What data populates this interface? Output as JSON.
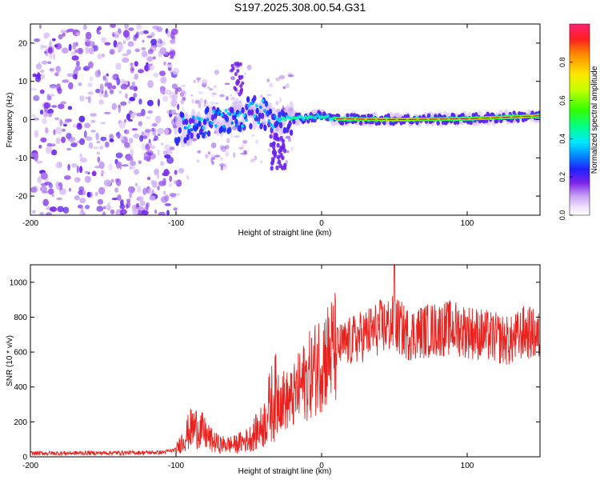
{
  "title": "S197.2025.308.00.54.G31",
  "chart_data": [
    {
      "type": "heatmap",
      "title": "S197.2025.308.00.54.G31",
      "xlabel": "Height of straight line (km)",
      "ylabel": "Frequency (Hz)",
      "xlim": [
        -200,
        150
      ],
      "ylim": [
        -25,
        25
      ],
      "xticks": [
        -200,
        -100,
        0,
        100
      ],
      "yticks": [
        -20,
        -10,
        0,
        10,
        20
      ],
      "colorbar": {
        "label": "Normalized spectral amplitude",
        "ticks": [
          "0.0",
          "0.2",
          "0.4",
          "0.6",
          "0.8"
        ],
        "range": [
          0,
          1
        ]
      },
      "ridge": {
        "description_points": [
          {
            "x": -100,
            "y": -3
          },
          {
            "x": -80,
            "y": -1
          },
          {
            "x": -60,
            "y": 1
          },
          {
            "x": -40,
            "y": 2
          },
          {
            "x": -30,
            "y": 0
          },
          {
            "x": -20,
            "y": 0.5
          },
          {
            "x": -10,
            "y": 0.5
          },
          {
            "x": 0,
            "y": 1
          },
          {
            "x": 10,
            "y": 0.2
          },
          {
            "x": 50,
            "y": 0
          },
          {
            "x": 100,
            "y": 0.2
          },
          {
            "x": 150,
            "y": 1
          }
        ]
      }
    },
    {
      "type": "line",
      "xlabel": "Height of straight line (km)",
      "ylabel": "SNR (10 * v/v)",
      "xlim": [
        -200,
        150
      ],
      "ylim": [
        0,
        1100
      ],
      "xticks": [
        -200,
        -100,
        0,
        100
      ],
      "yticks": [
        0,
        200,
        400,
        600,
        800,
        1000
      ],
      "color": "#e8231f",
      "series": [
        {
          "name": "SNR",
          "envelope_mean": [
            [
              -200,
              20
            ],
            [
              -150,
              22
            ],
            [
              -110,
              25
            ],
            [
              -100,
              40
            ],
            [
              -95,
              100
            ],
            [
              -90,
              160
            ],
            [
              -85,
              170
            ],
            [
              -80,
              130
            ],
            [
              -75,
              90
            ],
            [
              -70,
              70
            ],
            [
              -60,
              70
            ],
            [
              -50,
              100
            ],
            [
              -40,
              180
            ],
            [
              -35,
              300
            ],
            [
              -30,
              360
            ],
            [
              -25,
              320
            ],
            [
              -20,
              330
            ],
            [
              -15,
              400
            ],
            [
              -10,
              450
            ],
            [
              -5,
              500
            ],
            [
              0,
              560
            ],
            [
              10,
              620
            ],
            [
              20,
              660
            ],
            [
              30,
              700
            ],
            [
              40,
              740
            ],
            [
              50,
              760
            ],
            [
              60,
              700
            ],
            [
              70,
              720
            ],
            [
              80,
              730
            ],
            [
              90,
              740
            ],
            [
              100,
              720
            ],
            [
              110,
              700
            ],
            [
              120,
              680
            ],
            [
              130,
              660
            ],
            [
              140,
              720
            ],
            [
              150,
              680
            ]
          ],
          "peak": {
            "x": 50,
            "y": 1100
          }
        }
      ]
    }
  ]
}
